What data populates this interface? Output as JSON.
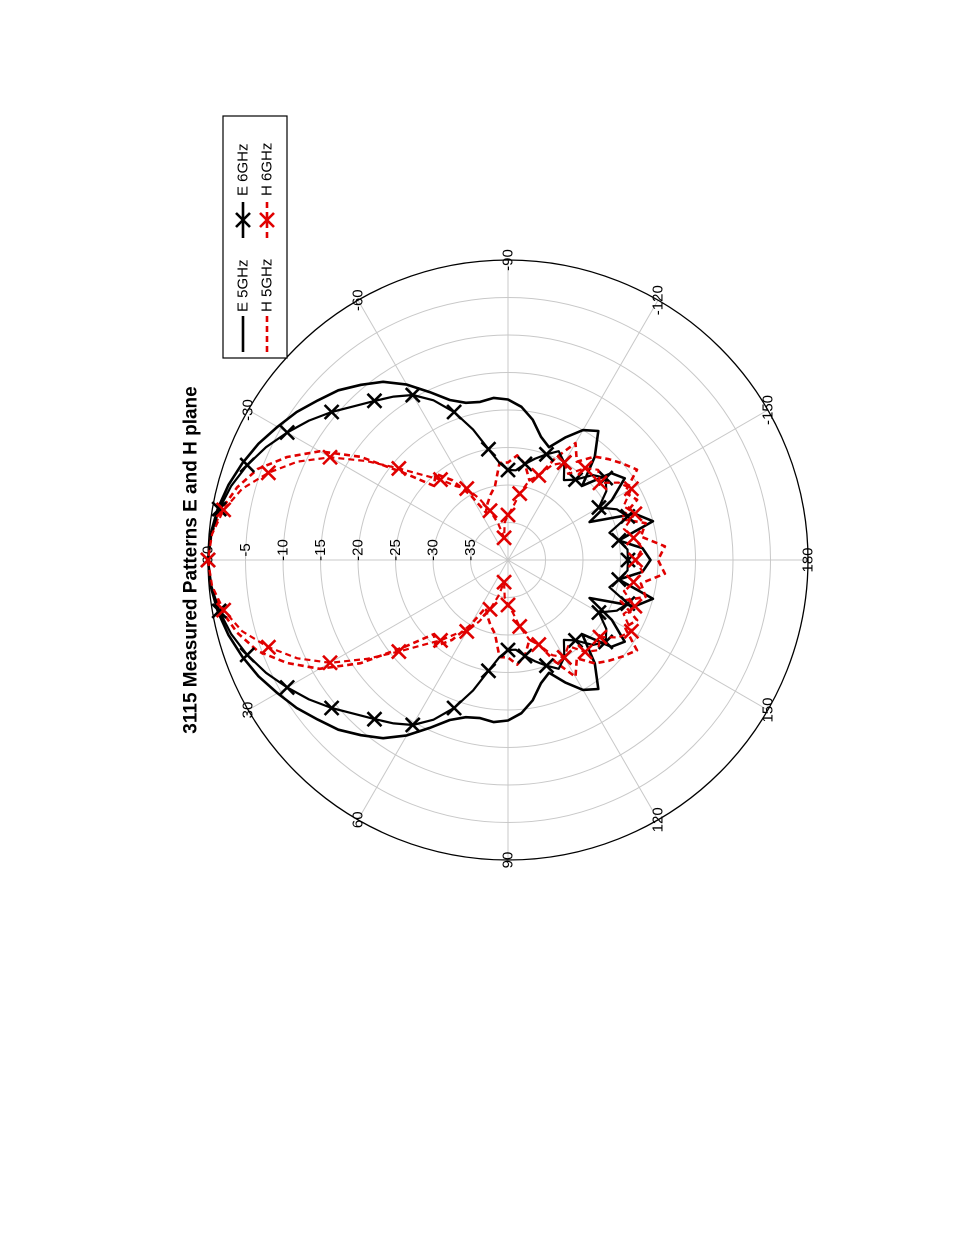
{
  "chart_data": {
    "type": "polar",
    "title": "3115 Measured Patterns E and H plane",
    "orientation": "rotated 90 degrees clockwise on page",
    "radial_axis": {
      "unit": "dB",
      "rlim": [
        -40,
        0
      ],
      "ticks": [
        0,
        -5,
        -10,
        -15,
        -20,
        -25,
        -30,
        -35
      ],
      "tick_labels": [
        "0",
        "-5",
        "-10",
        "-15",
        "-20",
        "-25",
        "-30",
        "-35"
      ]
    },
    "angular_axis": {
      "unit": "deg",
      "ticks": [
        0,
        30,
        60,
        90,
        120,
        150,
        180,
        -150,
        -120,
        -90,
        -60,
        -30
      ],
      "tick_labels": [
        "0",
        "30",
        "60",
        "90",
        "120",
        "150",
        "180",
        "-150",
        "-120",
        "-90",
        "-60",
        "-30"
      ]
    },
    "grid": true,
    "legend": {
      "placement": "top-right",
      "entries": [
        "E 5GHz",
        "H 5GHz",
        "E 6GHz",
        "H 6GHz"
      ]
    },
    "series": [
      {
        "name": "E 5GHz",
        "color": "#000000",
        "style": "solid",
        "marker": "none",
        "angles": [
          0,
          5,
          10,
          15,
          20,
          25,
          30,
          35,
          40,
          45,
          50,
          55,
          60,
          65,
          70,
          75,
          80,
          85,
          90,
          95,
          100,
          105,
          110,
          115,
          120,
          125,
          130,
          135,
          140,
          145,
          150,
          155,
          160,
          165,
          170,
          175,
          180
        ],
        "values": [
          0,
          -0.2,
          -0.7,
          -1.4,
          -2.3,
          -3.3,
          -4.5,
          -5.6,
          -6.9,
          -8,
          -9.5,
          -11,
          -13,
          -15.3,
          -17.3,
          -18.3,
          -18.6,
          -18.3,
          -18.6,
          -19.5,
          -21,
          -23,
          -24,
          -22,
          -20,
          -19,
          -22,
          -26,
          -22,
          -21,
          -24,
          -28,
          -22,
          -20,
          -25,
          -22,
          -21
        ]
      },
      {
        "name": "H 5GHz",
        "color": "#e00000",
        "style": "dashed",
        "marker": "none",
        "angles": [
          0,
          5,
          10,
          15,
          20,
          25,
          30,
          35,
          40,
          45,
          50,
          55,
          60,
          65,
          70,
          75,
          80,
          85,
          90,
          95,
          100,
          105,
          110,
          115,
          120,
          125,
          130,
          135,
          140,
          145,
          150,
          155,
          160,
          165,
          170,
          175,
          180
        ],
        "values": [
          0,
          -0.3,
          -1.2,
          -2.6,
          -4.5,
          -7.5,
          -11,
          -16,
          -22,
          -26,
          -25,
          -27,
          -30,
          -33,
          -32,
          -31,
          -30,
          -27,
          -27,
          -26,
          -27,
          -29,
          -28,
          -25,
          -22,
          -24,
          -22,
          -21,
          -20,
          -19,
          -22,
          -21,
          -24,
          -21,
          -22,
          -19,
          -20
        ]
      },
      {
        "name": "E 6GHz",
        "color": "#000000",
        "style": "solid",
        "marker": "x",
        "angles": [
          0,
          5,
          10,
          15,
          20,
          25,
          30,
          35,
          40,
          45,
          50,
          55,
          60,
          65,
          70,
          75,
          80,
          85,
          90,
          95,
          100,
          105,
          110,
          115,
          120,
          125,
          130,
          135,
          140,
          145,
          150,
          155,
          160,
          165,
          170,
          175,
          180
        ],
        "values": [
          0,
          -0.3,
          -0.9,
          -1.8,
          -3,
          -4.4,
          -6,
          -7.6,
          -9.3,
          -11,
          -12.3,
          -13.4,
          -14.6,
          -16.5,
          -19,
          -22,
          -25,
          -27,
          -28,
          -28,
          -27,
          -26,
          -25,
          -24,
          -25,
          -27,
          -26,
          -24,
          -23,
          -24,
          -26,
          -24,
          -23,
          -26,
          -25,
          -24,
          -24
        ]
      },
      {
        "name": "H 6GHz",
        "color": "#e00000",
        "style": "dashed",
        "marker": "x",
        "angles": [
          0,
          5,
          10,
          15,
          20,
          25,
          30,
          35,
          40,
          45,
          50,
          55,
          60,
          65,
          70,
          75,
          80,
          85,
          90,
          95,
          100,
          105,
          110,
          115,
          120,
          125,
          130,
          135,
          140,
          145,
          150,
          155,
          160,
          165,
          170,
          175,
          180
        ],
        "values": [
          0,
          -0.4,
          -1.5,
          -3.3,
          -6,
          -9,
          -12.6,
          -17,
          -21,
          -24,
          -26,
          -28,
          -29,
          -31,
          -33,
          -35,
          -37,
          -35,
          -34,
          -33,
          -31,
          -29,
          -28,
          -26,
          -25,
          -26,
          -24,
          -23,
          -24,
          -22,
          -21,
          -23,
          -22,
          -24,
          -23,
          -22,
          -23
        ]
      }
    ]
  }
}
